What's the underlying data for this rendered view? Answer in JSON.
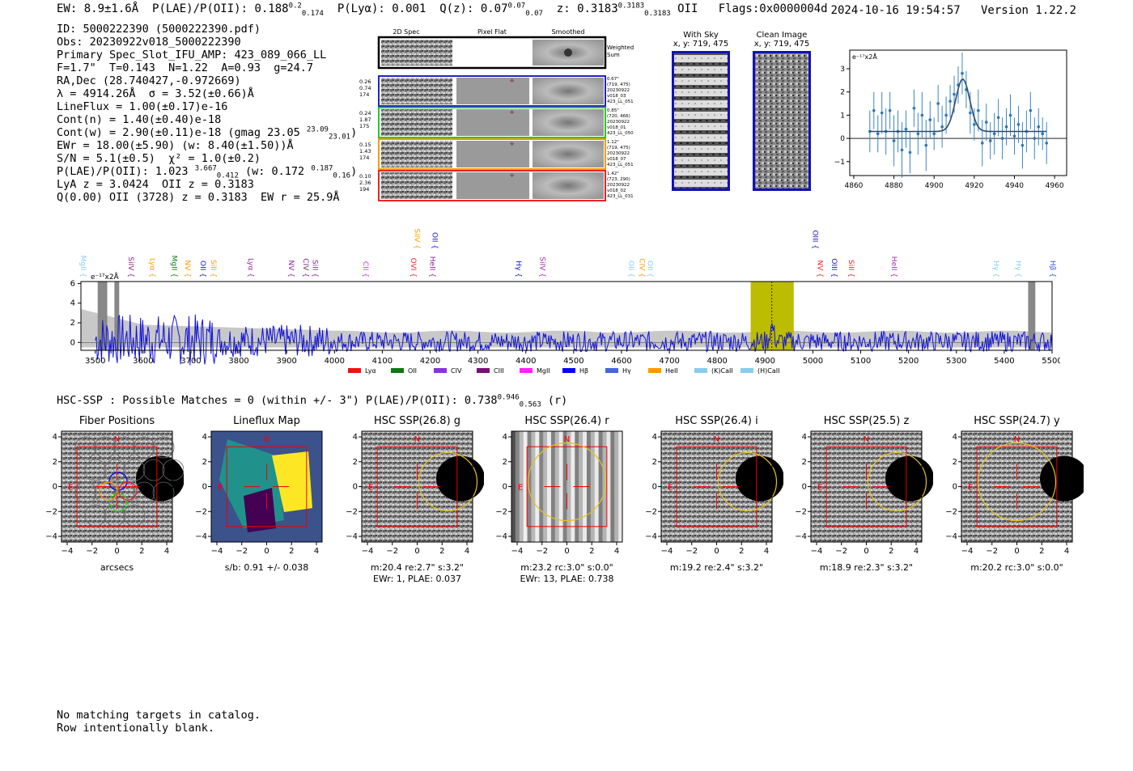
{
  "header": {
    "ew": "EW: 8.9±1.6Å",
    "plae_label": "P(LAE)/P(OII): 0.188",
    "plae_sup": "0.2",
    "plae_sub": "0.174",
    "plya": "P(Lyα): 0.001",
    "qz_label": "Q(z): 0.07",
    "qz_sup": "0.07",
    "qz_sub": "0.07",
    "z_label": "z: 0.3183",
    "z_sup": "0.3183",
    "z_sub": "0.3183",
    "z_line": "OII",
    "flags": "Flags:0x0000004d",
    "timestamp": "2024-10-16 19:54:57",
    "version": "Version 1.22.2"
  },
  "info": {
    "id": "ID: 5000222390 (5000222390.pdf)",
    "obs": "Obs: 20230922v018_5000222390",
    "primary": "Primary Spec_Slot_IFU_AMP: 423_089_066_LL",
    "params": "F=1.7\"  T=0.143  N=1.22  A=0.93  g=24.7",
    "radec": "RA,Dec (28.740427,-0.972669)",
    "lambda": "λ = 4914.26Å  σ = 3.52(±0.66)Å",
    "lineflux": "LineFlux = 1.00(±0.17)e-16",
    "contn": "Cont(n) = 1.40(±0.40)e-18",
    "contw": "Cont(w) = 2.90(±0.11)e-18 (gmag 23.05",
    "contw_sup": "23.09",
    "contw_sub": "23.01",
    "contw_end": ")",
    "ewr": "EWr = 18.00(±5.90) (w: 8.40(±1.50))Å",
    "sn": "S/N = 5.1(±0.5)  χ² = 1.0(±0.2)",
    "plae2": "P(LAE)/P(OII): 1.023",
    "plae2_sup": "3.667",
    "plae2_sub": "0.412",
    "plae2_w": "(w: 0.172",
    "plae2_w_sup": "0.187",
    "plae2_w_sub": "0.16",
    "plae2_end": ")",
    "lya": "LyA z = 3.0424  OII z = 0.3183",
    "q": "Q(0.00) OII (3728) z = 0.3183  EW r = 25.9Å"
  },
  "stamps": {
    "col_titles": [
      "2D Spec",
      "Pixel Flat",
      "Smoothed"
    ],
    "weighted_sum": "Weighted\nSum",
    "rows": [
      {
        "left": "0.26\n0.74\n174",
        "right": "0.67\"\n(719, 475)\n20230922\nv018_03\n423_LL_051",
        "color": "#2222cc"
      },
      {
        "left": "0.24\n1.87\n175",
        "right": "0.85\"\n(720, 466)\n20230922\nv018_01\n423_LL_050",
        "color": "#22cc22"
      },
      {
        "left": "0.15\n1.43\n174",
        "right": "1.12\"\n(719, 475)\n20230922\nv018_07\n423_LL_051",
        "color": "#ff9900"
      },
      {
        "left": "0.10\n2.36\n194",
        "right": "1.42\"\n(723, 290)\n20230922\nv018_02\n423_LL_031",
        "color": "#ee2222"
      }
    ]
  },
  "sky": {
    "with_sky_title": "With Sky",
    "with_sky_sub": "x, y: 719, 475",
    "clean_title": "Clean Image",
    "clean_sub": "x, y: 719, 475"
  },
  "chart_data": [
    {
      "type": "line",
      "name": "line-fit-zoom",
      "ylabel_unit": "e⁻¹⁷x2Å",
      "xlim": [
        4858,
        4966
      ],
      "ylim": [
        -1.6,
        3.8
      ],
      "xticks": [
        4860,
        4880,
        4900,
        4920,
        4940,
        4960
      ],
      "yticks": [
        -1,
        0,
        1,
        2,
        3
      ],
      "fit": {
        "center": 4914.26,
        "sigma": 3.52,
        "amp": 2.25,
        "cont": 0.3
      },
      "points": [
        [
          4868,
          0.3,
          0.9
        ],
        [
          4870,
          1.2,
          0.8
        ],
        [
          4872,
          0.2,
          0.8
        ],
        [
          4874,
          1.1,
          0.9
        ],
        [
          4876,
          0.3,
          1.0
        ],
        [
          4878,
          1.2,
          0.8
        ],
        [
          4880,
          -0.1,
          1.1
        ],
        [
          4882,
          0.3,
          0.9
        ],
        [
          4884,
          -0.5,
          1.2
        ],
        [
          4886,
          0.4,
          0.8
        ],
        [
          4888,
          -0.6,
          0.9
        ],
        [
          4890,
          1.3,
          0.8
        ],
        [
          4892,
          0.2,
          0.9
        ],
        [
          4894,
          1.0,
          1.0
        ],
        [
          4896,
          -0.3,
          1.1
        ],
        [
          4898,
          0.8,
          0.8
        ],
        [
          4900,
          0.2,
          0.7
        ],
        [
          4902,
          1.5,
          0.8
        ],
        [
          4904,
          0.5,
          0.9
        ],
        [
          4906,
          1.0,
          0.8
        ],
        [
          4908,
          1.6,
          0.7
        ],
        [
          4910,
          1.9,
          0.8
        ],
        [
          4912,
          2.3,
          0.8
        ],
        [
          4914,
          2.8,
          0.9
        ],
        [
          4916,
          2.1,
          0.8
        ],
        [
          4918,
          1.1,
          0.9
        ],
        [
          4920,
          0.6,
          0.7
        ],
        [
          4922,
          1.2,
          0.9
        ],
        [
          4924,
          -0.2,
          1.0
        ],
        [
          4926,
          0.7,
          0.8
        ],
        [
          4928,
          -0.1,
          0.8
        ],
        [
          4930,
          0.2,
          0.9
        ],
        [
          4932,
          0.9,
          0.8
        ],
        [
          4934,
          0.0,
          0.9
        ],
        [
          4936,
          0.5,
          0.8
        ],
        [
          4938,
          1.0,
          0.9
        ],
        [
          4940,
          0.1,
          0.8
        ],
        [
          4942,
          0.6,
          0.8
        ],
        [
          4944,
          -0.3,
          1.0
        ],
        [
          4946,
          0.3,
          0.9
        ],
        [
          4948,
          1.2,
          0.8
        ],
        [
          4950,
          0.0,
          0.9
        ],
        [
          4952,
          0.5,
          0.8
        ],
        [
          4954,
          0.2,
          0.7
        ],
        [
          4956,
          -0.2,
          0.9
        ]
      ]
    },
    {
      "type": "line",
      "name": "full-spectrum",
      "ylabel_unit": "e⁻¹⁷x2Å",
      "xlim": [
        3470,
        5500
      ],
      "ylim": [
        -0.8,
        6.2
      ],
      "xticks": [
        3500,
        3600,
        3700,
        3800,
        3900,
        4000,
        4100,
        4200,
        4300,
        4400,
        4500,
        4600,
        4700,
        4800,
        4900,
        5000,
        5100,
        5200,
        5300,
        5400,
        5500
      ],
      "yticks": [
        0,
        2,
        4,
        6
      ],
      "highlight_band": [
        4870,
        4960
      ],
      "marked_wavelength": 4914.26,
      "masked_regions": [
        [
          3505,
          3525
        ],
        [
          3540,
          3550
        ],
        [
          5450,
          5465
        ]
      ],
      "line_markers": [
        {
          "w": 3470,
          "label": "MgII",
          "color": "#88ccee"
        },
        {
          "w": 3570,
          "label": "SiIV",
          "color": "#882288"
        },
        {
          "w": 3615,
          "label": "Lyα",
          "color": "#ff9900"
        },
        {
          "w": 3660,
          "label": "MgII",
          "color": "#117711"
        },
        {
          "w": 3688,
          "label": "NV",
          "color": "#ff9900"
        },
        {
          "w": 3720,
          "label": "OII",
          "color": "#1111cc"
        },
        {
          "w": 3742,
          "label": "SiII",
          "color": "#ff9900"
        },
        {
          "w": 3820,
          "label": "Lyα",
          "color": "#aa22aa"
        },
        {
          "w": 3905,
          "label": "NV",
          "color": "#8822aa"
        },
        {
          "w": 3935,
          "label": "CIV",
          "color": "#882288"
        },
        {
          "w": 3955,
          "label": "SiII",
          "color": "#8822aa"
        },
        {
          "w": 4060,
          "label": "CII",
          "color": "#ee22ee"
        },
        {
          "w": 4160,
          "label": "OVI",
          "color": "#ee2222"
        },
        {
          "w": 4168,
          "label": "SiIV",
          "color": "#ff9900",
          "high": true
        },
        {
          "w": 4200,
          "label": "HeII",
          "color": "#882288"
        },
        {
          "w": 4205,
          "label": "OII",
          "color": "#1111cc",
          "high": true
        },
        {
          "w": 4380,
          "label": "Hγ",
          "color": "#1111cc"
        },
        {
          "w": 4430,
          "label": "SiIV",
          "color": "#aa22aa"
        },
        {
          "w": 4615,
          "label": "OII",
          "color": "#88ccee"
        },
        {
          "w": 4638,
          "label": "CIV",
          "color": "#ff9900"
        },
        {
          "w": 4655,
          "label": "OII",
          "color": "#88ccee"
        },
        {
          "w": 5000,
          "label": "OIII",
          "color": "#1111cc",
          "high": true
        },
        {
          "w": 5010,
          "label": "NV",
          "color": "#ee2222"
        },
        {
          "w": 5040,
          "label": "OIII",
          "color": "#1111cc"
        },
        {
          "w": 5075,
          "label": "SiII",
          "color": "#ee2222"
        },
        {
          "w": 5165,
          "label": "HeII",
          "color": "#aa22aa"
        },
        {
          "w": 5378,
          "label": "Hγ",
          "color": "#88ccee"
        },
        {
          "w": 5425,
          "label": "Hγ",
          "color": "#88ccee"
        },
        {
          "w": 5500,
          "label": "Hβ",
          "color": "#3355cc"
        }
      ],
      "legend": [
        {
          "label": "Lyα",
          "color": "#ee1111"
        },
        {
          "label": "OII",
          "color": "#117711"
        },
        {
          "label": "CIV",
          "color": "#8833dd"
        },
        {
          "label": "CIII",
          "color": "#771177"
        },
        {
          "label": "MgII",
          "color": "#ff22ff"
        },
        {
          "label": "Hβ",
          "color": "#0000ff"
        },
        {
          "label": "Hγ",
          "color": "#4466dd"
        },
        {
          "label": "HeII",
          "color": "#ff9900"
        },
        {
          "label": "(K)CaII",
          "color": "#88ccee"
        },
        {
          "label": "(H)CaII",
          "color": "#88ccee"
        }
      ]
    }
  ],
  "hsc": {
    "line": "HSC-SSP : Possible Matches = 0 (within +/- 3\")  P(LAE)/P(OII): 0.738",
    "line_sup": "0.946",
    "line_sub": "0.563",
    "line_end": "(r)",
    "panels": [
      {
        "title": "Fiber Positions",
        "cap1": "arcsecs",
        "cap2": ""
      },
      {
        "title": "Lineflux Map",
        "cap1": "s/b: 0.91 +/- 0.038",
        "cap2": ""
      },
      {
        "title": "HSC SSP(26.8) g",
        "cap1": "m:20.4  re:2.7\"  s:3.2\"",
        "cap2": "EWr: 1, PLAE: 0.037"
      },
      {
        "title": "HSC SSP(26.4) r",
        "cap1": "m:23.2 rc:3.0\"  s:0.0\"",
        "cap2": "EWr: 13, PLAE: 0.738"
      },
      {
        "title": "HSC SSP(26.4) i",
        "cap1": "m:19.2  re:2.4\"  s:3.2\"",
        "cap2": ""
      },
      {
        "title": "HSC SSP(25.5) z",
        "cap1": "m:18.9  re:2.3\"  s:3.2\"",
        "cap2": ""
      },
      {
        "title": "HSC SSP(24.7) y",
        "cap1": "m:20.2 rc:3.0\"  s:0.0\"",
        "cap2": ""
      }
    ],
    "axis_ticks": [
      "−4",
      "−2",
      "0",
      "2",
      "4"
    ],
    "north": "N",
    "east": "E"
  },
  "footer": {
    "line1": "No matching targets in catalog.",
    "line2": "Row intentionally blank."
  }
}
